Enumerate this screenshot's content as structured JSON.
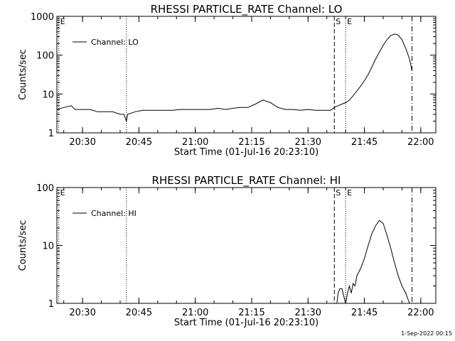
{
  "footer": {
    "timestamp": "1-Sep-2022 00:15"
  },
  "chart_data": [
    {
      "type": "line",
      "title": "RHESSI PARTICLE_RATE Channel: LO",
      "xlabel": "Start Time (01-Jul-16 20:23:10)",
      "ylabel": "Counts/sec",
      "xlim": [
        "20:23:10",
        "22:04:00"
      ],
      "ylim": [
        1,
        1000
      ],
      "yscale": "log",
      "xticks": [
        "20:30",
        "20:45",
        "21:00",
        "21:15",
        "21:30",
        "21:45",
        "22:00"
      ],
      "yticks": [
        "1",
        "10",
        "100",
        "1000"
      ],
      "legend": {
        "label": "Channel: LO",
        "position": "top-left"
      },
      "markers": [
        {
          "time": "20:23:40",
          "label": "E",
          "style": "dotted"
        },
        {
          "time": "20:41:40",
          "label": "",
          "style": "dotted"
        },
        {
          "time": "21:37:00",
          "label": "S",
          "style": "dashed"
        },
        {
          "time": "21:40:00",
          "label": "E",
          "style": "dotted"
        },
        {
          "time": "21:57:40",
          "label": "",
          "style": "dashdot"
        }
      ],
      "series": [
        {
          "name": "Channel: LO",
          "x": [
            "20:23:10",
            "20:25",
            "20:27",
            "20:28",
            "20:30",
            "20:32",
            "20:34",
            "20:36",
            "20:38",
            "20:40",
            "20:41",
            "20:41:40",
            "20:42",
            "20:44",
            "20:46",
            "20:48",
            "20:50",
            "20:52",
            "20:54",
            "20:56",
            "20:58",
            "21:00",
            "21:02",
            "21:04",
            "21:06",
            "21:08",
            "21:10",
            "21:12",
            "21:14",
            "21:16",
            "21:18",
            "21:20",
            "21:22",
            "21:24",
            "21:26",
            "21:28",
            "21:30",
            "21:32",
            "21:34",
            "21:36",
            "21:37",
            "21:38",
            "21:39",
            "21:40",
            "21:41",
            "21:42",
            "21:43",
            "21:44",
            "21:45",
            "21:46",
            "21:47",
            "21:48",
            "21:49",
            "21:50",
            "21:51",
            "21:52",
            "21:53",
            "21:54",
            "21:55",
            "21:56",
            "21:57",
            "21:57:40"
          ],
          "y": [
            4,
            4.5,
            5,
            4,
            4,
            4,
            3.5,
            3.5,
            3.5,
            3,
            3,
            2,
            3,
            3.5,
            3.8,
            3.8,
            3.8,
            3.8,
            3.8,
            4,
            4,
            4,
            4,
            4,
            4.3,
            4,
            4.3,
            4.5,
            4.5,
            5.5,
            7,
            6,
            4.5,
            4,
            4,
            3.8,
            4,
            3.8,
            3.8,
            3.8,
            4.5,
            5,
            5.5,
            6,
            7,
            9,
            12,
            16,
            22,
            32,
            50,
            80,
            120,
            180,
            250,
            320,
            350,
            330,
            250,
            150,
            80,
            40
          ]
        }
      ]
    },
    {
      "type": "line",
      "title": "RHESSI PARTICLE_RATE Channel: HI",
      "xlabel": "Start Time (01-Jul-16 20:23:10)",
      "ylabel": "Counts/sec",
      "xlim": [
        "20:23:10",
        "22:04:00"
      ],
      "ylim": [
        1,
        100
      ],
      "yscale": "log",
      "xticks": [
        "20:30",
        "20:45",
        "21:00",
        "21:15",
        "21:30",
        "21:45",
        "22:00"
      ],
      "yticks": [
        "1",
        "10",
        "100"
      ],
      "legend": {
        "label": "Channel: HI",
        "position": "top-left"
      },
      "markers": [
        {
          "time": "20:23:40",
          "label": "E",
          "style": "dotted"
        },
        {
          "time": "20:41:40",
          "label": "",
          "style": "dotted"
        },
        {
          "time": "21:37:00",
          "label": "S",
          "style": "dashed"
        },
        {
          "time": "21:40:00",
          "label": "E",
          "style": "dotted"
        },
        {
          "time": "21:57:40",
          "label": "",
          "style": "dashdot"
        }
      ],
      "series": [
        {
          "name": "Channel: HI",
          "x": [
            "21:37:40",
            "21:38:00",
            "21:38:30",
            "21:39:00",
            "21:40:00",
            "21:40:30",
            "21:41:00",
            "21:41:30",
            "21:42:00",
            "21:42:30",
            "21:43:00",
            "21:44:00",
            "21:45:00",
            "21:46:00",
            "21:47:00",
            "21:48:00",
            "21:49:00",
            "21:50:00",
            "21:51:00",
            "21:52:00",
            "21:53:00",
            "21:54:00",
            "21:55:00",
            "21:56:00",
            "21:57:00"
          ],
          "y": [
            1,
            1.5,
            1.8,
            1.8,
            1,
            1.5,
            2,
            1.5,
            2.2,
            2,
            3,
            4,
            6,
            10,
            16,
            22,
            27,
            24,
            15,
            9,
            5,
            3,
            2,
            1.5,
            1
          ]
        }
      ]
    }
  ]
}
